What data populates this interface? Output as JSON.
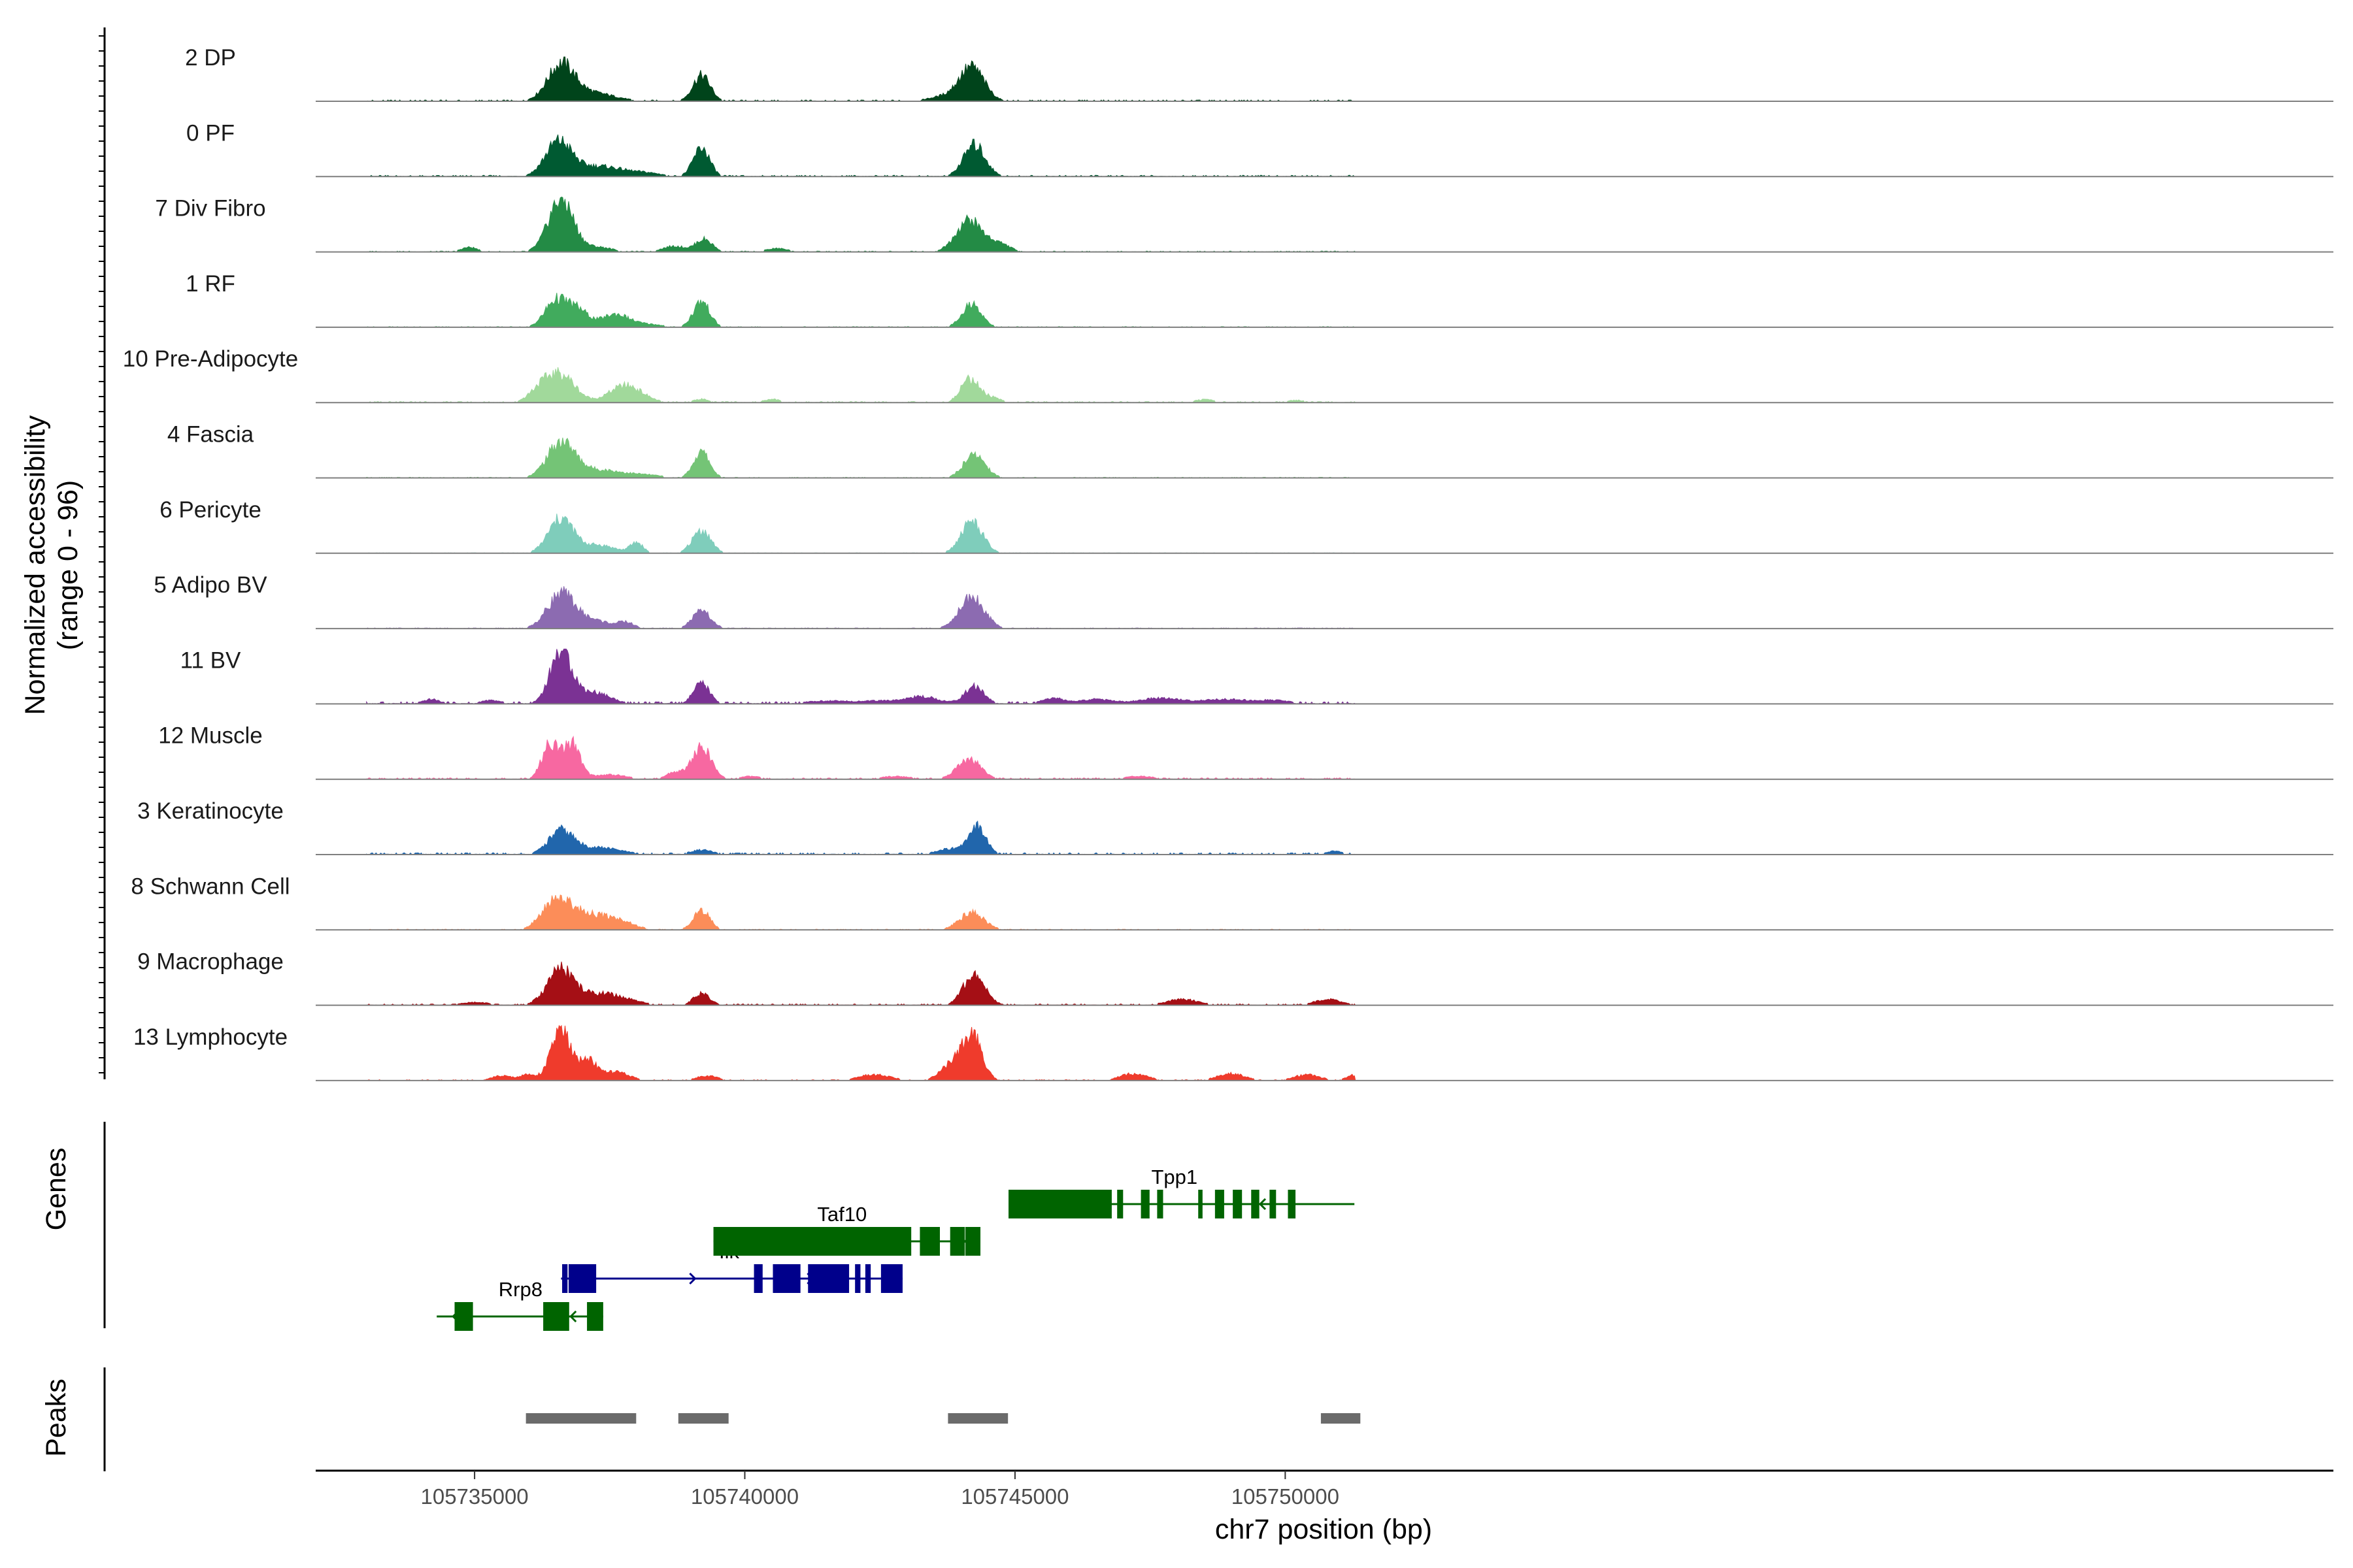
{
  "chart_data": {
    "type": "area",
    "title": "",
    "ylabel": "Normalized accessibility",
    "ylabel_range": "(range 0 - 96)",
    "xlabel": "chr7 position (bp)",
    "xlim": [
      105732060,
      105769395
    ],
    "ylim": [
      0,
      96
    ],
    "xticks": [
      105735000,
      105740000,
      105745000,
      105750000
    ],
    "xtick_labels": [
      "105735000",
      "105740000",
      "105745000",
      "105750000"
    ],
    "peak_centers": [
      105736600,
      105739200,
      105744200
    ],
    "series": [
      {
        "name": "2 DP",
        "color": "#00441b",
        "peaks": [
          [
            105736600,
            62,
            250
          ],
          [
            105737200,
            14,
            400
          ],
          [
            105739200,
            45,
            160
          ],
          [
            105744200,
            58,
            230
          ],
          [
            105743700,
            8,
            300
          ]
        ],
        "baseline": 1.5
      },
      {
        "name": "0 PF",
        "color": "#005a32",
        "peaks": [
          [
            105736550,
            58,
            240
          ],
          [
            105737300,
            18,
            450
          ],
          [
            105739200,
            50,
            150
          ],
          [
            105744250,
            55,
            200
          ],
          [
            105738200,
            5,
            300
          ]
        ],
        "baseline": 1.5
      },
      {
        "name": "7 Div Fibro",
        "color": "#238b45",
        "peaks": [
          [
            105736600,
            92,
            230
          ],
          [
            105737300,
            8,
            250
          ],
          [
            105739250,
            22,
            150
          ],
          [
            105738700,
            10,
            220
          ],
          [
            105744150,
            55,
            240
          ],
          [
            105744700,
            14,
            200
          ],
          [
            105734900,
            8,
            150
          ],
          [
            105740600,
            6,
            200
          ]
        ],
        "baseline": 1.0
      },
      {
        "name": "1 RF",
        "color": "#41ab5d",
        "peaks": [
          [
            105736500,
            45,
            200
          ],
          [
            105736900,
            30,
            200
          ],
          [
            105737600,
            22,
            250
          ],
          [
            105739200,
            45,
            150
          ],
          [
            105744200,
            40,
            180
          ],
          [
            105738200,
            5,
            300
          ]
        ],
        "baseline": 0.8
      },
      {
        "name": "10 Pre-Adipocyte",
        "color": "#a1d99b",
        "peaks": [
          [
            105736600,
            48,
            260
          ],
          [
            105736200,
            20,
            200
          ],
          [
            105737800,
            30,
            300
          ],
          [
            105744150,
            40,
            160
          ],
          [
            105744500,
            10,
            200
          ],
          [
            105740500,
            6,
            150
          ],
          [
            105739200,
            6,
            150
          ],
          [
            105748500,
            5,
            200
          ],
          [
            105750200,
            4,
            200
          ]
        ],
        "baseline": 1.2
      },
      {
        "name": "4 Fascia",
        "color": "#74c476",
        "peaks": [
          [
            105736600,
            60,
            250
          ],
          [
            105737300,
            14,
            450
          ],
          [
            105739200,
            45,
            150
          ],
          [
            105744250,
            40,
            200
          ],
          [
            105738200,
            4,
            300
          ]
        ],
        "baseline": 0.8
      },
      {
        "name": "6 Pericyte",
        "color": "#7fcdbb",
        "peaks": [
          [
            105736600,
            60,
            230
          ],
          [
            105737300,
            14,
            300
          ],
          [
            105738000,
            18,
            120
          ],
          [
            105739200,
            40,
            170
          ],
          [
            105744200,
            55,
            200
          ]
        ],
        "baseline": 0.5
      },
      {
        "name": "5 Adipo BV",
        "color": "#8c6bb1",
        "peaks": [
          [
            105736600,
            60,
            250
          ],
          [
            105737200,
            14,
            300
          ],
          [
            105737800,
            10,
            150
          ],
          [
            105739200,
            30,
            170
          ],
          [
            105744200,
            55,
            230
          ]
        ],
        "baseline": 0.8
      },
      {
        "name": "11 BV",
        "color": "#7b3294",
        "peaks": [
          [
            105736600,
            92,
            200
          ],
          [
            105737200,
            20,
            300
          ],
          [
            105739200,
            35,
            150
          ],
          [
            105744250,
            30,
            180
          ],
          [
            105743300,
            12,
            300
          ],
          [
            105734200,
            8,
            150
          ],
          [
            105735300,
            6,
            200
          ],
          [
            105745700,
            10,
            200
          ],
          [
            105746500,
            8,
            300
          ],
          [
            105747700,
            10,
            400
          ],
          [
            105748900,
            8,
            400
          ],
          [
            105749800,
            6,
            300
          ],
          [
            105741500,
            5,
            400
          ],
          [
            105742500,
            5,
            400
          ]
        ],
        "baseline": 2.5
      },
      {
        "name": "12 Muscle",
        "color": "#f768a1",
        "peaks": [
          [
            105736400,
            62,
            150
          ],
          [
            105736800,
            62,
            150
          ],
          [
            105739200,
            55,
            180
          ],
          [
            105738700,
            12,
            150
          ],
          [
            105737500,
            8,
            300
          ],
          [
            105744150,
            35,
            220
          ],
          [
            105742800,
            5,
            300
          ],
          [
            105747300,
            5,
            300
          ],
          [
            105740100,
            5,
            200
          ]
        ],
        "baseline": 1.5
      },
      {
        "name": "3 Keratinocyte",
        "color": "#2166ac",
        "peaks": [
          [
            105736600,
            40,
            230
          ],
          [
            105737300,
            12,
            400
          ],
          [
            105744300,
            50,
            160
          ],
          [
            105743800,
            10,
            250
          ],
          [
            105739200,
            8,
            200
          ],
          [
            105750900,
            6,
            150
          ]
        ],
        "baseline": 2.0
      },
      {
        "name": "8 Schwann Cell",
        "color": "#fc8d59",
        "peaks": [
          [
            105736500,
            50,
            250
          ],
          [
            105737000,
            25,
            300
          ],
          [
            105737600,
            18,
            300
          ],
          [
            105739200,
            35,
            150
          ],
          [
            105744200,
            30,
            230
          ]
        ],
        "baseline": 0.8
      },
      {
        "name": "9 Macrophage",
        "color": "#a50f15",
        "peaks": [
          [
            105736600,
            62,
            250
          ],
          [
            105737300,
            18,
            300
          ],
          [
            105739200,
            20,
            150
          ],
          [
            105744250,
            55,
            200
          ],
          [
            105748100,
            10,
            300
          ],
          [
            105750800,
            10,
            250
          ],
          [
            105737800,
            8,
            300
          ],
          [
            105735000,
            5,
            300
          ]
        ],
        "baseline": 1.5
      },
      {
        "name": "13 Lymphocyte",
        "color": "#ef3b2c",
        "peaks": [
          [
            105736600,
            90,
            180
          ],
          [
            105737100,
            35,
            150
          ],
          [
            105737600,
            15,
            250
          ],
          [
            105744200,
            80,
            180
          ],
          [
            105743800,
            25,
            200
          ],
          [
            105736000,
            10,
            150
          ],
          [
            105735500,
            8,
            200
          ],
          [
            105739300,
            8,
            200
          ],
          [
            105742400,
            10,
            300
          ],
          [
            105747200,
            12,
            250
          ],
          [
            105749000,
            12,
            250
          ],
          [
            105750400,
            10,
            250
          ],
          [
            105751300,
            10,
            150
          ]
        ],
        "baseline": 1.0
      }
    ],
    "genes": [
      {
        "name": "Rrp8",
        "strand": "-",
        "color": "#006400",
        "row": 3,
        "start": 105734300,
        "end": 105737380,
        "exons": [
          [
            105734630,
            105734970
          ],
          [
            105736270,
            105736750
          ],
          [
            105737080,
            105737380
          ]
        ],
        "label_x": 105735850
      },
      {
        "name": "Ilk",
        "strand": "+",
        "color": "#00008b",
        "row": 2,
        "start": 105736600,
        "end": 105742920,
        "exons": [
          [
            105736620,
            105736720
          ],
          [
            105736740,
            105737250
          ],
          [
            105740170,
            105740330
          ],
          [
            105740520,
            105741030
          ],
          [
            105741170,
            105741930
          ],
          [
            105742040,
            105742140
          ],
          [
            105742230,
            105742330
          ],
          [
            105742520,
            105742920
          ]
        ],
        "label_x": 105739710
      },
      {
        "name": "Taf10",
        "strand": "-",
        "color": "#006400",
        "row": 1,
        "start": 105739420,
        "end": 105744360,
        "exons": [
          [
            105739420,
            105743080
          ],
          [
            105743240,
            105743610
          ],
          [
            105743800,
            105744070
          ],
          [
            105744080,
            105744360
          ]
        ],
        "label_x": 105741800
      },
      {
        "name": "Tpp1",
        "strand": "-",
        "color": "#006400",
        "row": 0,
        "start": 105744880,
        "end": 105751280,
        "exons": [
          [
            105744880,
            105746790
          ],
          [
            105746890,
            105747000
          ],
          [
            105747330,
            105747490
          ],
          [
            105747630,
            105747740
          ],
          [
            105748390,
            105748470
          ],
          [
            105748700,
            105748870
          ],
          [
            105749030,
            105749200
          ],
          [
            105749370,
            105749520
          ],
          [
            105749710,
            105749830
          ],
          [
            105750050,
            105750190
          ]
        ],
        "label_x": 105747950
      }
    ],
    "peak_regions": [
      [
        105735950,
        105737990
      ],
      [
        105738770,
        105739700
      ],
      [
        105743760,
        105744870
      ],
      [
        105750660,
        105751390
      ]
    ],
    "track_titles": {
      "genes": "Genes",
      "peaks": "Peaks"
    }
  }
}
